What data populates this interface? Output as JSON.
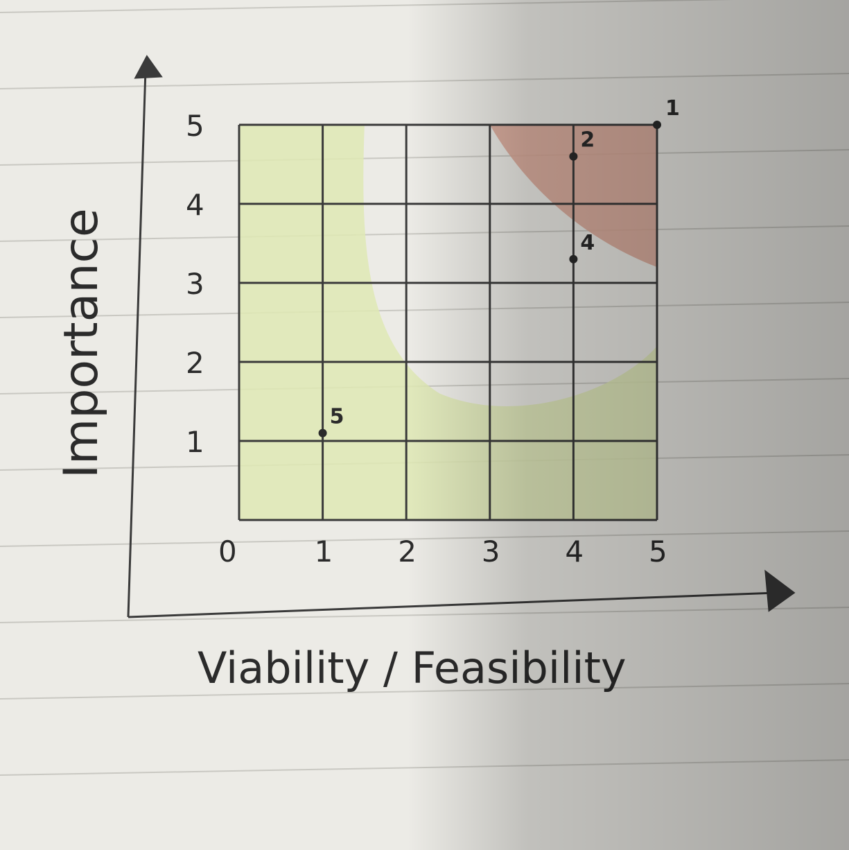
{
  "chart_data": {
    "type": "scatter",
    "xlabel": "Viability / Feasibility",
    "ylabel": "Importance",
    "xlim": [
      0,
      5
    ],
    "ylim": [
      0,
      5
    ],
    "x_ticks": [
      "0",
      "1",
      "2",
      "3",
      "4",
      "5"
    ],
    "y_ticks": [
      "1",
      "2",
      "3",
      "4",
      "5"
    ],
    "grid": true,
    "regions": [
      {
        "name": "low-zone",
        "color": "#dfe9b4"
      },
      {
        "name": "high-zone",
        "color": "#d9a593"
      }
    ],
    "points": [
      {
        "label": "1",
        "x": 5,
        "y": 5
      },
      {
        "label": "2",
        "x": 4,
        "y": 4.6
      },
      {
        "label": "4",
        "x": 4,
        "y": 3.3
      },
      {
        "label": "5",
        "x": 1,
        "y": 1.1
      }
    ]
  }
}
